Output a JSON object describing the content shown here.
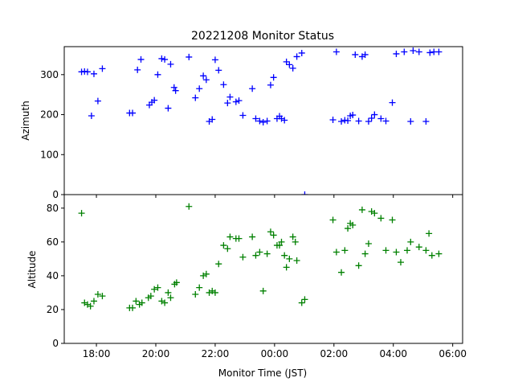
{
  "chart_data": {
    "type": "scatter",
    "title": "20221208 Monitor Status",
    "xlabel": "Monitor Time (JST)",
    "x_tick_labels": [
      "18:00",
      "20:00",
      "22:00",
      "00:00",
      "02:00",
      "04:00",
      "06:00"
    ],
    "x_range": [
      "2022-12-08 16:55",
      "2022-12-09 06:20"
    ],
    "panels": [
      {
        "name": "azimuth",
        "ylabel": "Azimuth",
        "ylim": [
          0,
          370
        ],
        "yticks": [
          0,
          100,
          200,
          300
        ],
        "color": "#0000ff",
        "marker": "+",
        "points": [
          [
            "2022-12-08 17:30",
            307
          ],
          [
            "2022-12-08 17:36",
            308
          ],
          [
            "2022-12-08 17:42",
            307
          ],
          [
            "2022-12-08 17:50",
            197
          ],
          [
            "2022-12-08 17:55",
            302
          ],
          [
            "2022-12-08 18:03",
            234
          ],
          [
            "2022-12-08 18:12",
            315
          ],
          [
            "2022-12-08 19:07",
            204
          ],
          [
            "2022-12-08 19:13",
            204
          ],
          [
            "2022-12-08 19:23",
            312
          ],
          [
            "2022-12-08 19:30",
            338
          ],
          [
            "2022-12-08 19:47",
            224
          ],
          [
            "2022-12-08 19:52",
            231
          ],
          [
            "2022-12-08 19:57",
            236
          ],
          [
            "2022-12-08 20:04",
            300
          ],
          [
            "2022-12-08 20:12",
            340
          ],
          [
            "2022-12-08 20:18",
            338
          ],
          [
            "2022-12-08 20:25",
            216
          ],
          [
            "2022-12-08 20:30",
            326
          ],
          [
            "2022-12-08 20:37",
            268
          ],
          [
            "2022-12-08 20:40",
            260
          ],
          [
            "2022-12-08 21:07",
            344
          ],
          [
            "2022-12-08 21:20",
            242
          ],
          [
            "2022-12-08 21:28",
            265
          ],
          [
            "2022-12-08 21:36",
            297
          ],
          [
            "2022-12-08 21:42",
            287
          ],
          [
            "2022-12-08 21:48",
            183
          ],
          [
            "2022-12-08 21:54",
            188
          ],
          [
            "2022-12-08 22:00",
            337
          ],
          [
            "2022-12-08 22:07",
            311
          ],
          [
            "2022-12-08 22:17",
            275
          ],
          [
            "2022-12-08 22:25",
            229
          ],
          [
            "2022-12-08 22:30",
            244
          ],
          [
            "2022-12-08 22:42",
            232
          ],
          [
            "2022-12-08 22:48",
            235
          ],
          [
            "2022-12-08 22:56",
            198
          ],
          [
            "2022-12-08 23:15",
            265
          ],
          [
            "2022-12-08 23:22",
            190
          ],
          [
            "2022-12-08 23:30",
            184
          ],
          [
            "2022-12-08 23:37",
            181
          ],
          [
            "2022-12-08 23:45",
            184
          ],
          [
            "2022-12-08 23:52",
            274
          ],
          [
            "2022-12-08 23:58",
            293
          ],
          [
            "2022-12-09 00:05",
            190
          ],
          [
            "2022-12-09 00:10",
            196
          ],
          [
            "2022-12-09 00:14",
            190
          ],
          [
            "2022-12-09 00:20",
            186
          ],
          [
            "2022-12-09 00:24",
            332
          ],
          [
            "2022-12-09 00:30",
            325
          ],
          [
            "2022-12-09 00:37",
            316
          ],
          [
            "2022-12-09 00:45",
            345
          ],
          [
            "2022-12-09 00:55",
            354
          ],
          [
            "2022-12-09 01:01",
            0
          ],
          [
            "2022-12-09 01:58",
            187
          ],
          [
            "2022-12-09 02:05",
            357
          ],
          [
            "2022-12-09 02:15",
            183
          ],
          [
            "2022-12-09 02:22",
            186
          ],
          [
            "2022-12-09 02:28",
            185
          ],
          [
            "2022-12-09 02:33",
            197
          ],
          [
            "2022-12-09 02:38",
            199
          ],
          [
            "2022-12-09 02:43",
            350
          ],
          [
            "2022-12-09 02:50",
            184
          ],
          [
            "2022-12-09 02:57",
            345
          ],
          [
            "2022-12-09 03:03",
            350
          ],
          [
            "2022-12-09 03:10",
            183
          ],
          [
            "2022-12-09 03:16",
            191
          ],
          [
            "2022-12-09 03:22",
            200
          ],
          [
            "2022-12-09 03:35",
            190
          ],
          [
            "2022-12-09 03:45",
            184
          ],
          [
            "2022-12-09 03:58",
            230
          ],
          [
            "2022-12-09 04:06",
            352
          ],
          [
            "2022-12-09 04:22",
            357
          ],
          [
            "2022-12-09 04:35",
            183
          ],
          [
            "2022-12-09 04:40",
            360
          ],
          [
            "2022-12-09 04:52",
            357
          ],
          [
            "2022-12-09 05:06",
            183
          ],
          [
            "2022-12-09 05:14",
            355
          ],
          [
            "2022-12-09 05:22",
            357
          ],
          [
            "2022-12-09 05:32",
            357
          ]
        ]
      },
      {
        "name": "altitude",
        "ylabel": "Altitude",
        "ylim": [
          0,
          88
        ],
        "yticks": [
          0,
          20,
          40,
          60,
          80
        ],
        "color": "#008000",
        "marker": "+",
        "points": [
          [
            "2022-12-08 17:30",
            77
          ],
          [
            "2022-12-08 17:36",
            24
          ],
          [
            "2022-12-08 17:42",
            23
          ],
          [
            "2022-12-08 17:48",
            22
          ],
          [
            "2022-12-08 17:55",
            25
          ],
          [
            "2022-12-08 18:03",
            29
          ],
          [
            "2022-12-08 18:12",
            28
          ],
          [
            "2022-12-08 19:07",
            21
          ],
          [
            "2022-12-08 19:13",
            21
          ],
          [
            "2022-12-08 19:20",
            25
          ],
          [
            "2022-12-08 19:27",
            23
          ],
          [
            "2022-12-08 19:32",
            24
          ],
          [
            "2022-12-08 19:45",
            27
          ],
          [
            "2022-12-08 19:50",
            28
          ],
          [
            "2022-12-08 19:57",
            32
          ],
          [
            "2022-12-08 20:04",
            33
          ],
          [
            "2022-12-08 20:12",
            25
          ],
          [
            "2022-12-08 20:18",
            24
          ],
          [
            "2022-12-08 20:25",
            30
          ],
          [
            "2022-12-08 20:30",
            27
          ],
          [
            "2022-12-08 20:38",
            35
          ],
          [
            "2022-12-08 20:42",
            36
          ],
          [
            "2022-12-08 21:07",
            81
          ],
          [
            "2022-12-08 21:20",
            29
          ],
          [
            "2022-12-08 21:28",
            33
          ],
          [
            "2022-12-08 21:36",
            40
          ],
          [
            "2022-12-08 21:42",
            41
          ],
          [
            "2022-12-08 21:48",
            30
          ],
          [
            "2022-12-08 21:54",
            31
          ],
          [
            "2022-12-08 22:00",
            30
          ],
          [
            "2022-12-08 22:07",
            47
          ],
          [
            "2022-12-08 22:17",
            58
          ],
          [
            "2022-12-08 22:25",
            56
          ],
          [
            "2022-12-08 22:30",
            63
          ],
          [
            "2022-12-08 22:42",
            62
          ],
          [
            "2022-12-08 22:48",
            62
          ],
          [
            "2022-12-08 22:56",
            51
          ],
          [
            "2022-12-08 23:15",
            63
          ],
          [
            "2022-12-08 23:22",
            52
          ],
          [
            "2022-12-08 23:30",
            54
          ],
          [
            "2022-12-08 23:37",
            31
          ],
          [
            "2022-12-08 23:45",
            53
          ],
          [
            "2022-12-08 23:52",
            66
          ],
          [
            "2022-12-08 23:58",
            64
          ],
          [
            "2022-12-09 00:05",
            58
          ],
          [
            "2022-12-09 00:10",
            58
          ],
          [
            "2022-12-09 00:14",
            60
          ],
          [
            "2022-12-09 00:20",
            52
          ],
          [
            "2022-12-09 00:24",
            45
          ],
          [
            "2022-12-09 00:30",
            50
          ],
          [
            "2022-12-09 00:37",
            63
          ],
          [
            "2022-12-09 00:45",
            49
          ],
          [
            "2022-12-09 00:42",
            60
          ],
          [
            "2022-12-09 00:55",
            24
          ],
          [
            "2022-12-09 01:01",
            26
          ],
          [
            "2022-12-09 01:58",
            73
          ],
          [
            "2022-12-09 02:05",
            54
          ],
          [
            "2022-12-09 02:15",
            42
          ],
          [
            "2022-12-09 02:22",
            55
          ],
          [
            "2022-12-09 02:28",
            68
          ],
          [
            "2022-12-09 02:33",
            71
          ],
          [
            "2022-12-09 02:38",
            70
          ],
          [
            "2022-12-09 02:50",
            46
          ],
          [
            "2022-12-09 02:57",
            79
          ],
          [
            "2022-12-09 03:03",
            53
          ],
          [
            "2022-12-09 03:10",
            59
          ],
          [
            "2022-12-09 03:16",
            78
          ],
          [
            "2022-12-09 03:22",
            77
          ],
          [
            "2022-12-09 03:35",
            74
          ],
          [
            "2022-12-09 03:45",
            55
          ],
          [
            "2022-12-09 03:58",
            73
          ],
          [
            "2022-12-09 04:06",
            54
          ],
          [
            "2022-12-09 04:15",
            48
          ],
          [
            "2022-12-09 04:28",
            55
          ],
          [
            "2022-12-09 04:35",
            60
          ],
          [
            "2022-12-09 04:52",
            57
          ],
          [
            "2022-12-09 05:06",
            55
          ],
          [
            "2022-12-09 05:12",
            65
          ],
          [
            "2022-12-09 05:18",
            52
          ],
          [
            "2022-12-09 05:32",
            53
          ]
        ]
      }
    ]
  }
}
